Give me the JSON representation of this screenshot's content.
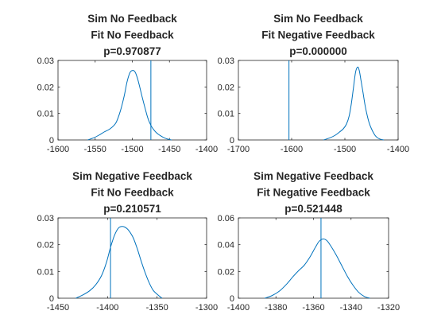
{
  "chart_data": [
    {
      "type": "line",
      "title": [
        "Sim No Feedback",
        "Fit No Feedback",
        "p=0.970877"
      ],
      "xlabel": "",
      "ylabel": "",
      "xlim": [
        -1600,
        -1400
      ],
      "ylim": [
        0,
        0.03
      ],
      "xticks": [
        -1600,
        -1550,
        -1500,
        -1450,
        -1400
      ],
      "xtick_labels": [
        "-1600",
        "-1550",
        "-1500",
        "-1450",
        "-1400"
      ],
      "yticks": [
        0,
        0.01,
        0.02,
        0.03
      ],
      "ytick_labels": [
        "0",
        "0.01",
        "0.02",
        "0.03"
      ],
      "series": [
        {
          "kind": "density",
          "x": [
            -1560,
            -1552,
            -1545,
            -1538,
            -1530,
            -1522,
            -1516,
            -1511,
            -1507,
            -1503,
            -1499,
            -1496,
            -1493,
            -1490,
            -1487,
            -1483,
            -1479,
            -1475,
            -1471,
            -1467,
            -1462,
            -1457,
            -1452,
            -1447
          ],
          "y": [
            0,
            0.0008,
            0.0018,
            0.003,
            0.0042,
            0.0065,
            0.011,
            0.0165,
            0.022,
            0.0255,
            0.0262,
            0.0255,
            0.0232,
            0.02,
            0.0165,
            0.0122,
            0.0082,
            0.0055,
            0.0038,
            0.0026,
            0.0016,
            0.0008,
            0.0003,
            0
          ]
        }
      ],
      "vline": -1475,
      "color": "#0072bd",
      "grid": false
    },
    {
      "type": "line",
      "title": [
        "Sim No Feedback",
        "Fit Negative Feedback",
        "p=0.000000"
      ],
      "xlabel": "",
      "ylabel": "",
      "xlim": [
        -1700,
        -1400
      ],
      "ylim": [
        0,
        0.03
      ],
      "xticks": [
        -1700,
        -1600,
        -1500,
        -1400
      ],
      "xtick_labels": [
        "-1700",
        "-1600",
        "-1500",
        "-1400"
      ],
      "yticks": [
        0,
        0.01,
        0.02,
        0.03
      ],
      "ytick_labels": [
        "0",
        "0.01",
        "0.02",
        "0.03"
      ],
      "series": [
        {
          "kind": "density",
          "x": [
            -1540,
            -1528,
            -1518,
            -1510,
            -1503,
            -1497,
            -1492,
            -1488,
            -1484,
            -1480,
            -1476,
            -1473,
            -1470,
            -1466,
            -1462,
            -1458,
            -1454,
            -1450,
            -1446,
            -1442,
            -1437,
            -1432,
            -1427
          ],
          "y": [
            0,
            0.0008,
            0.0018,
            0.003,
            0.0042,
            0.006,
            0.009,
            0.0135,
            0.0195,
            0.0255,
            0.0275,
            0.0262,
            0.0228,
            0.018,
            0.013,
            0.0092,
            0.0062,
            0.0042,
            0.0026,
            0.0014,
            0.0006,
            0.0002,
            0
          ]
        }
      ],
      "vline": -1605,
      "color": "#0072bd",
      "grid": false
    },
    {
      "type": "line",
      "title": [
        "Sim Negative Feedback",
        "Fit No Feedback",
        "p=0.210571"
      ],
      "xlabel": "",
      "ylabel": "",
      "xlim": [
        -1450,
        -1300
      ],
      "ylim": [
        0,
        0.03
      ],
      "xticks": [
        -1450,
        -1400,
        -1350,
        -1300
      ],
      "xtick_labels": [
        "-1450",
        "-1400",
        "-1350",
        "-1300"
      ],
      "yticks": [
        0,
        0.01,
        0.02,
        0.03
      ],
      "ytick_labels": [
        "0",
        "0.01",
        "0.02",
        "0.03"
      ],
      "series": [
        {
          "kind": "density",
          "x": [
            -1432,
            -1425,
            -1418,
            -1412,
            -1406,
            -1401,
            -1397,
            -1393,
            -1389,
            -1385,
            -1381,
            -1378,
            -1374,
            -1370,
            -1366,
            -1362,
            -1358,
            -1354,
            -1349,
            -1345
          ],
          "y": [
            0,
            0.0012,
            0.0028,
            0.005,
            0.0085,
            0.0135,
            0.019,
            0.0235,
            0.0262,
            0.0268,
            0.0262,
            0.025,
            0.0225,
            0.0185,
            0.0138,
            0.0095,
            0.0058,
            0.003,
            0.0012,
            0
          ]
        }
      ],
      "vline": -1397,
      "color": "#0072bd",
      "grid": false
    },
    {
      "type": "line",
      "title": [
        "Sim Negative Feedback",
        "Fit Negative Feedback",
        "p=0.521448"
      ],
      "xlabel": "",
      "ylabel": "",
      "xlim": [
        -1400,
        -1320
      ],
      "ylim": [
        0,
        0.06
      ],
      "xticks": [
        -1400,
        -1380,
        -1360,
        -1340,
        -1320
      ],
      "xtick_labels": [
        "-1400",
        "-1380",
        "-1360",
        "-1340",
        "-1320"
      ],
      "yticks": [
        0,
        0.02,
        0.04,
        0.06
      ],
      "ytick_labels": [
        "0",
        "0.02",
        "0.04",
        "0.06"
      ],
      "series": [
        {
          "kind": "density",
          "x": [
            -1386,
            -1382,
            -1378,
            -1374,
            -1371,
            -1368,
            -1365,
            -1362,
            -1359,
            -1357,
            -1355,
            -1353,
            -1351,
            -1348,
            -1345,
            -1342,
            -1339,
            -1336,
            -1333,
            -1330
          ],
          "y": [
            0,
            0.002,
            0.0055,
            0.011,
            0.016,
            0.0205,
            0.0245,
            0.0305,
            0.038,
            0.0425,
            0.0442,
            0.0432,
            0.0395,
            0.0325,
            0.0245,
            0.0165,
            0.0098,
            0.0045,
            0.0014,
            0
          ]
        }
      ],
      "vline": -1356,
      "color": "#0072bd",
      "grid": false
    }
  ]
}
